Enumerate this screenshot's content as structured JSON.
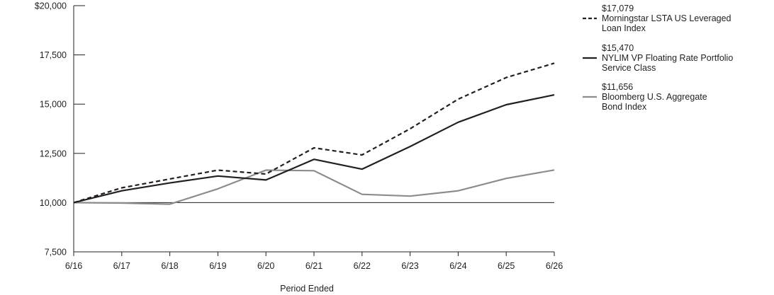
{
  "chart_data": {
    "type": "line",
    "title": "",
    "xlabel": "Period Ended",
    "ylabel": "",
    "categories": [
      "6/16",
      "6/17",
      "6/18",
      "6/19",
      "6/20",
      "6/21",
      "6/22",
      "6/23",
      "6/24",
      "6/25",
      "6/26"
    ],
    "ylim": [
      7500,
      20000
    ],
    "yticks": [
      7500,
      10000,
      12500,
      15000,
      17500,
      20000
    ],
    "ytick_labels": [
      "7,500",
      "10,000",
      "12,500",
      "15,000",
      "17,500",
      "$20,000"
    ],
    "reference_line": 10000,
    "legend_position": "right",
    "series": [
      {
        "name": "Morningstar LSTA US Leveraged Loan Index",
        "name_lines": [
          "Morningstar LSTA US Leveraged",
          "Loan Index"
        ],
        "end_label": "$17,079",
        "style": "dashed",
        "color": "#231f20",
        "values": [
          10000,
          10750,
          11200,
          11650,
          11450,
          12780,
          12420,
          13750,
          15250,
          16350,
          17079
        ]
      },
      {
        "name": "NYLIM VP Floating Rate Portfolio Service Class",
        "name_lines": [
          "NYLIM VP Floating Rate Portfolio",
          "Service Class"
        ],
        "end_label": "$15,470",
        "style": "solid",
        "color": "#231f20",
        "values": [
          10000,
          10600,
          11000,
          11350,
          11150,
          12200,
          11700,
          12850,
          14080,
          14970,
          15470
        ]
      },
      {
        "name": "Bloomberg U.S. Aggregate Bond Index",
        "name_lines": [
          "Bloomberg U.S. Aggregate",
          "Bond Index"
        ],
        "end_label": "$11,656",
        "style": "solid",
        "color": "#8c8c8c",
        "values": [
          10000,
          9980,
          9920,
          10700,
          11650,
          11620,
          10420,
          10330,
          10600,
          11230,
          11656
        ]
      }
    ]
  }
}
